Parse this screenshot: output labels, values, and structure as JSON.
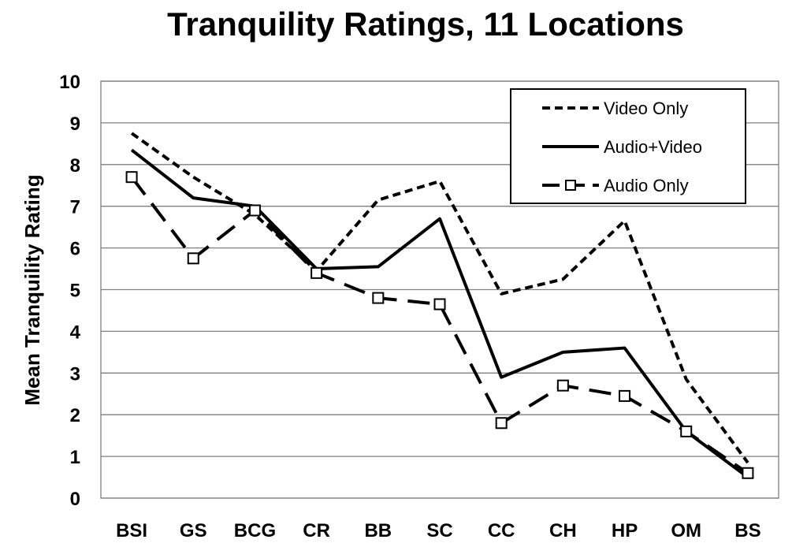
{
  "chart_data": {
    "type": "line",
    "title": "Tranquility Ratings, 11 Locations",
    "xlabel": "",
    "ylabel": "Mean Tranquility Rating",
    "categories": [
      "BSI",
      "GS",
      "BCG",
      "CR",
      "BB",
      "SC",
      "CC",
      "CH",
      "HP",
      "OM",
      "BS"
    ],
    "ylim": [
      0,
      10
    ],
    "yticks": [
      "0",
      "1",
      "2",
      "3",
      "4",
      "5",
      "6",
      "7",
      "8",
      "9",
      "10"
    ],
    "grid": true,
    "legend": "top-right",
    "series": [
      {
        "name": "Video Only",
        "style": "short-dash",
        "marker": "none",
        "color": "#000000",
        "values": [
          8.75,
          7.7,
          6.8,
          5.45,
          7.15,
          7.6,
          4.9,
          5.25,
          6.65,
          2.85,
          0.85
        ]
      },
      {
        "name": "Audio+Video",
        "style": "solid",
        "marker": "none",
        "color": "#000000",
        "values": [
          8.35,
          7.2,
          7.0,
          5.5,
          5.55,
          6.7,
          2.9,
          3.5,
          3.6,
          1.6,
          0.5
        ]
      },
      {
        "name": "Audio Only",
        "style": "long-dash",
        "marker": "square",
        "color": "#000000",
        "values": [
          7.7,
          5.75,
          6.9,
          5.4,
          4.8,
          4.65,
          1.8,
          2.7,
          2.45,
          1.6,
          0.6
        ]
      }
    ]
  }
}
